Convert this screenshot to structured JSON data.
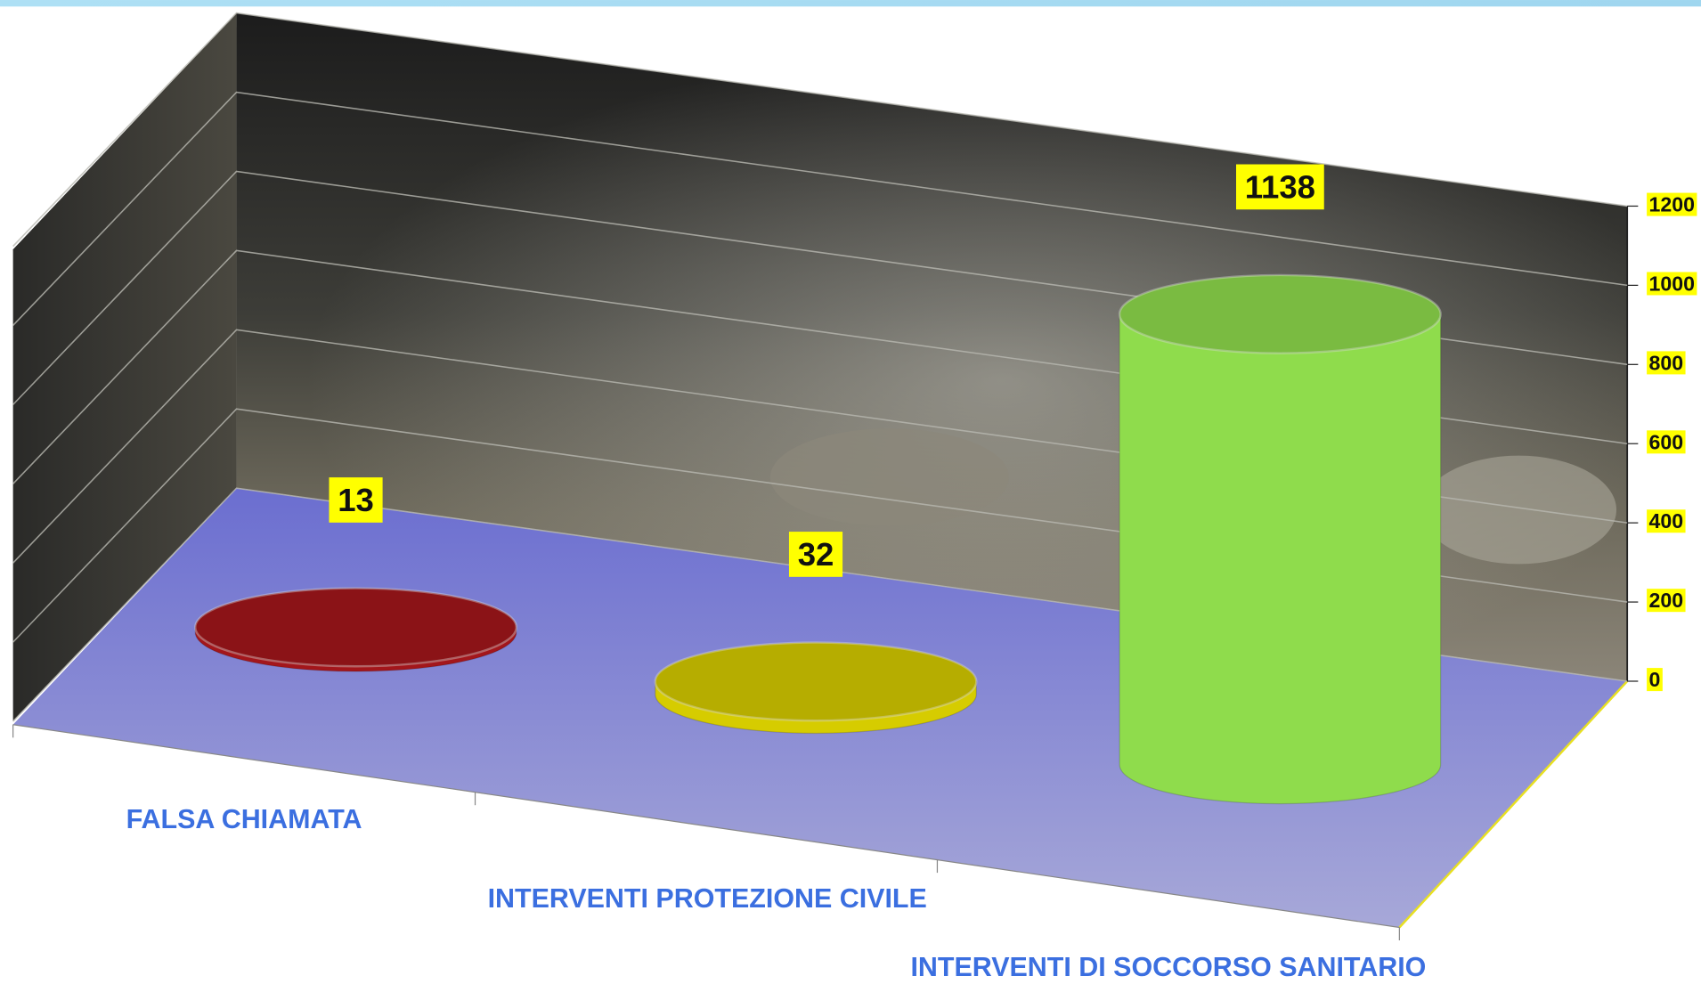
{
  "chart_data": {
    "type": "cylinder",
    "categories": [
      "FALSA CHIAMATA",
      "INTERVENTI PROTEZIONE CIVILE",
      "INTERVENTI DI SOCCORSO SANITARIO"
    ],
    "values": [
      13,
      32,
      1138
    ],
    "colors": [
      "#a3161b",
      "#d6cc00",
      "#8fdc4c"
    ],
    "ylim": [
      0,
      1200
    ],
    "yticks": [
      0,
      200,
      400,
      600,
      800,
      1000,
      1200
    ],
    "grid": true
  }
}
